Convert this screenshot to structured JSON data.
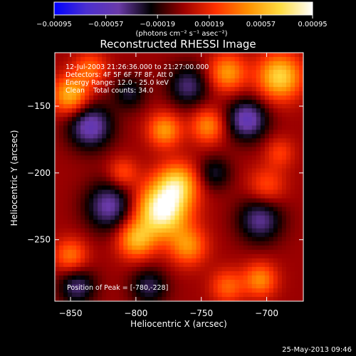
{
  "title": "Reconstructed RHESSI Image",
  "overlay": {
    "line1": "12-Jul-2003 21:26:36.000 to 21:27:00.000",
    "line2": "Detectors: 4F 5F 6F 7F 8F, Att 0",
    "line3": "Energy Range: 12.0 - 25.0 keV",
    "line4": "Clean    Total counts: 34.0",
    "peak": "Position of Peak = [-780,-228]"
  },
  "footer": {
    "timestamp": "25-May-2013 09:46"
  },
  "colorbar": {
    "ticks": [
      "-0.00095",
      "-0.00057",
      "-0.00019",
      "0.00019",
      "0.00057",
      "0.00095"
    ],
    "unit": "(photons cm⁻² s⁻¹ asec⁻²)",
    "colors": [
      "#0000ff",
      "#4b2fd0",
      "#6a3aa8",
      "#000000",
      "#9a0000",
      "#ff3000",
      "#ff9000",
      "#ffdc40",
      "#ffffff"
    ]
  },
  "chart_data": {
    "type": "heatmap",
    "title": "Reconstructed RHESSI Image",
    "xlabel": "Heliocentric X (arcsec)",
    "ylabel": "Heliocentric Y (arcsec)",
    "xlim": [
      -862,
      -672
    ],
    "ylim": [
      -296,
      -110
    ],
    "x_ticks": [
      -850,
      -800,
      -750,
      -700
    ],
    "y_ticks": [
      -150,
      -200,
      -250
    ],
    "x_tick_labels": [
      "−850",
      "−800",
      "−750",
      "−700"
    ],
    "y_tick_labels": [
      "−150",
      "−200",
      "−250"
    ],
    "zlim": [
      -0.00095,
      0.00095
    ],
    "peak": {
      "x": -780,
      "y": -228,
      "value": 0.00095
    },
    "sources": [
      {
        "x": -780,
        "y": -228,
        "amp": 0.00095,
        "r": 14
      },
      {
        "x": -768,
        "y": -208,
        "amp": 0.0006,
        "r": 11
      },
      {
        "x": -800,
        "y": -250,
        "amp": 0.00055,
        "r": 10
      },
      {
        "x": -760,
        "y": -255,
        "amp": 0.00045,
        "r": 10
      },
      {
        "x": -778,
        "y": -168,
        "amp": 0.0005,
        "r": 9
      },
      {
        "x": -745,
        "y": -165,
        "amp": 0.00045,
        "r": 9
      },
      {
        "x": -690,
        "y": -128,
        "amp": 0.0007,
        "r": 12
      },
      {
        "x": -730,
        "y": -125,
        "amp": 0.0005,
        "r": 10
      },
      {
        "x": -850,
        "y": -142,
        "amp": 0.0006,
        "r": 10
      },
      {
        "x": -835,
        "y": -122,
        "amp": 0.00035,
        "r": 9
      },
      {
        "x": -810,
        "y": -200,
        "amp": 0.0003,
        "r": 8
      },
      {
        "x": -850,
        "y": -262,
        "amp": 0.0004,
        "r": 9
      },
      {
        "x": -700,
        "y": -210,
        "amp": 0.0003,
        "r": 10
      },
      {
        "x": -705,
        "y": -280,
        "amp": 0.00045,
        "r": 9
      },
      {
        "x": -730,
        "y": -285,
        "amp": 0.00035,
        "r": 9
      },
      {
        "x": -690,
        "y": -185,
        "amp": 0.00025,
        "r": 8
      },
      {
        "x": -835,
        "y": -165,
        "amp": -0.00055,
        "r": 12
      },
      {
        "x": -820,
        "y": -225,
        "amp": -0.0005,
        "r": 13
      },
      {
        "x": -760,
        "y": -135,
        "amp": -0.0004,
        "r": 11
      },
      {
        "x": -715,
        "y": -160,
        "amp": -0.00055,
        "r": 11
      },
      {
        "x": -705,
        "y": -235,
        "amp": -0.00045,
        "r": 12
      },
      {
        "x": -845,
        "y": -285,
        "amp": -0.0004,
        "r": 10
      },
      {
        "x": -790,
        "y": -285,
        "amp": -0.00035,
        "r": 10
      },
      {
        "x": -740,
        "y": -200,
        "amp": -0.0003,
        "r": 9
      },
      {
        "x": -805,
        "y": -140,
        "amp": -0.0003,
        "r": 9
      }
    ]
  }
}
